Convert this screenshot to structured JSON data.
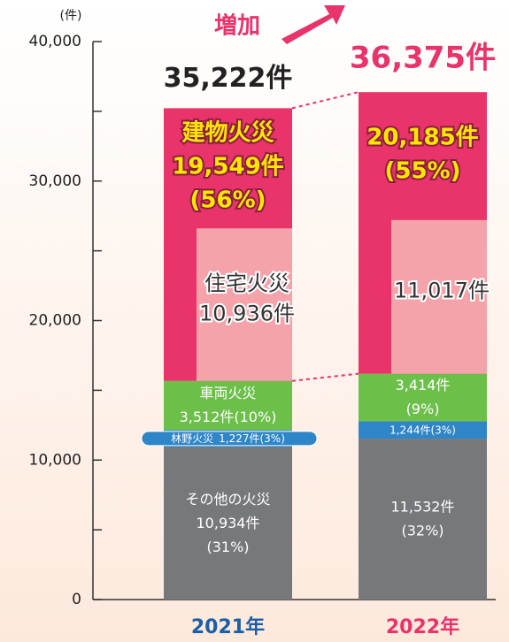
{
  "chart_data": {
    "type": "stacked_bar",
    "unit_label": "(件)",
    "annotation": "増加",
    "categories": [
      "2021年",
      "2022年"
    ],
    "ylim": [
      0,
      40000
    ],
    "yticks": [
      0,
      {
        "value": 10000,
        "label": "10,000"
      },
      {
        "value": 20000,
        "label": "20,000"
      },
      {
        "value": 30000,
        "label": "30,000"
      },
      {
        "value": 40000,
        "label": "40,000"
      }
    ],
    "minor_yticks": [
      5000,
      15000,
      25000,
      35000
    ],
    "series": [
      {
        "name": "その他の火災",
        "color": "#77787b",
        "values": [
          10934,
          11532
        ],
        "value_labels": [
          "10,934件",
          "11,532件"
        ],
        "share_labels": [
          "(31%)",
          "(32%)"
        ]
      },
      {
        "name": "林野火災",
        "color": "#2e86c8",
        "values": [
          1227,
          1244
        ],
        "value_labels": [
          "1,227件",
          "1,244件"
        ],
        "share_labels": [
          "(3%)",
          "(3%)"
        ]
      },
      {
        "name": "車両火災",
        "color": "#6cc04a",
        "values": [
          3512,
          3414
        ],
        "value_labels": [
          "3,512件",
          "3,414件"
        ],
        "share_labels": [
          "(10%)",
          "(9%)"
        ]
      },
      {
        "name": "建物火災",
        "color": "#e8336b",
        "values": [
          19549,
          20185
        ],
        "value_labels": [
          "19,549件",
          "20,185件"
        ],
        "share_labels": [
          "(56%)",
          "(55%)"
        ]
      }
    ],
    "sub_series": {
      "name": "住宅火災",
      "color": "#f5a3ab",
      "values": [
        10936,
        11017
      ],
      "value_labels": [
        "10,936件",
        "11,017件"
      ]
    },
    "totals": {
      "values": [
        35222,
        36375
      ],
      "value_labels": [
        "35,222件",
        "36,375件"
      ],
      "colors": [
        "#222222",
        "#e8336b"
      ]
    },
    "category_colors": [
      "#1a5fa8",
      "#e8336b"
    ]
  }
}
